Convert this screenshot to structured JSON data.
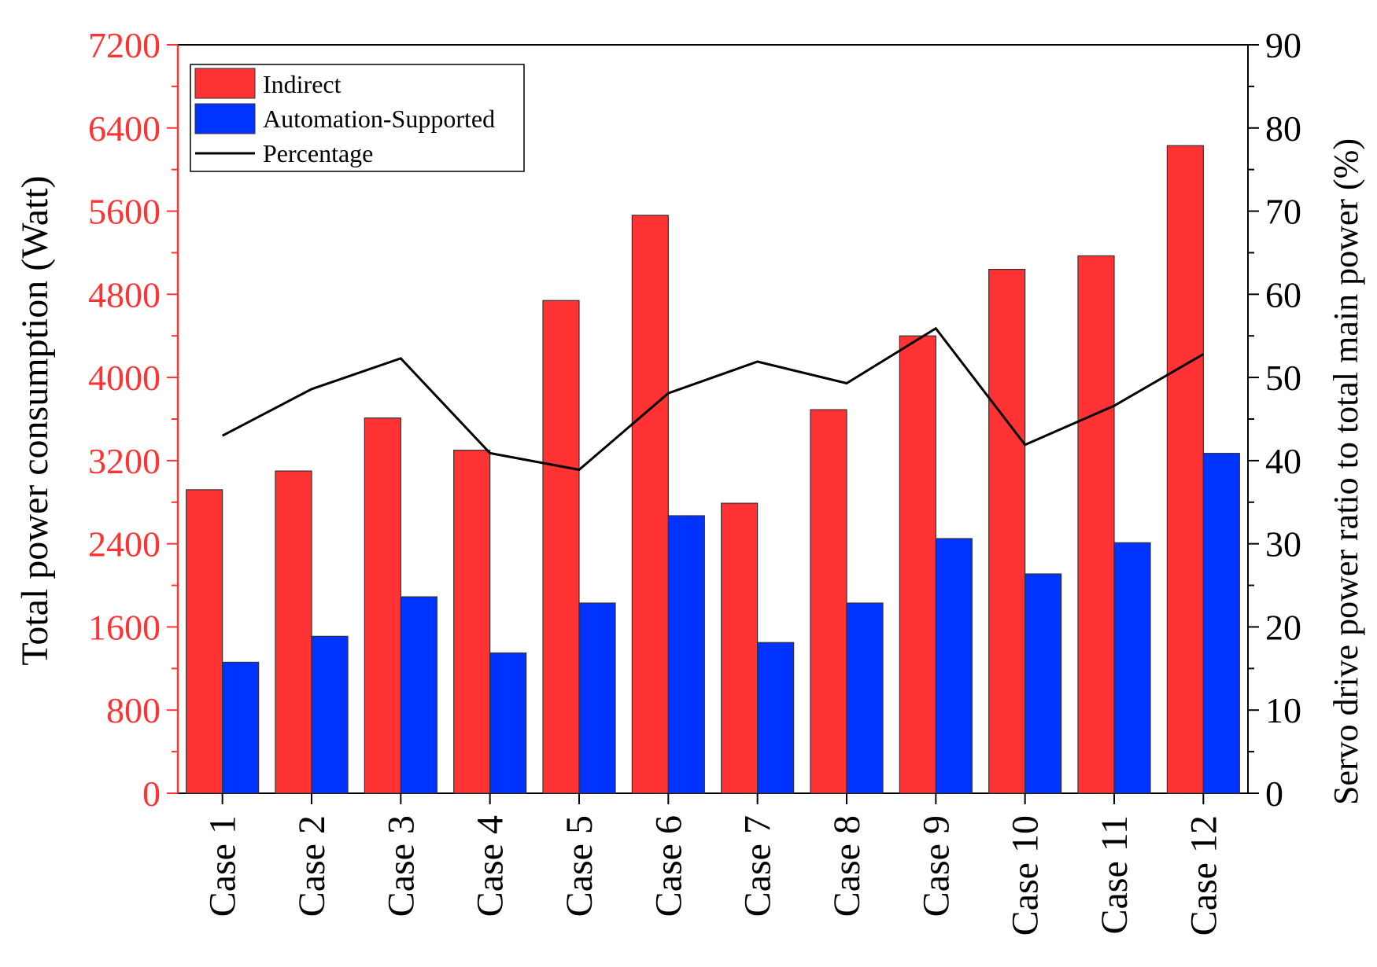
{
  "chart_data": {
    "type": "bar",
    "categories": [
      "Case 1",
      "Case 2",
      "Case 3",
      "Case 4",
      "Case 5",
      "Case 6",
      "Case 7",
      "Case 8",
      "Case 9",
      "Case 10",
      "Case 11",
      "Case 12"
    ],
    "series": [
      {
        "name": "Indirect",
        "axis": "left",
        "color": "#ff3333",
        "values": [
          2920,
          3100,
          3610,
          3300,
          4740,
          5560,
          2790,
          3690,
          4400,
          5040,
          5170,
          6230
        ]
      },
      {
        "name": "Automation-Supported",
        "axis": "left",
        "color": "#0033ff",
        "values": [
          1260,
          1510,
          1890,
          1350,
          1830,
          2670,
          1450,
          1830,
          2450,
          2110,
          2410,
          3270
        ]
      },
      {
        "name": "Percentage",
        "axis": "right",
        "type": "line",
        "color": "#000000",
        "values": [
          43.0,
          48.6,
          52.3,
          40.9,
          38.9,
          48.1,
          51.9,
          49.3,
          55.9,
          41.9,
          46.6,
          52.8
        ]
      }
    ],
    "ylabel": "Total power consumption (Watt)",
    "y2label": "Servo drive power ratio to total main power (%)",
    "xlabel": "",
    "ylim": [
      0,
      7200
    ],
    "y2lim": [
      0,
      90
    ],
    "yticks": [
      "0",
      "800",
      "1600",
      "2400",
      "3200",
      "4000",
      "4800",
      "5600",
      "6400",
      "7200"
    ],
    "y2ticks": [
      "0",
      "10",
      "20",
      "30",
      "40",
      "50",
      "60",
      "70",
      "80",
      "90"
    ],
    "legend_position": "top-left",
    "left_axis_color": "#ff3333"
  }
}
